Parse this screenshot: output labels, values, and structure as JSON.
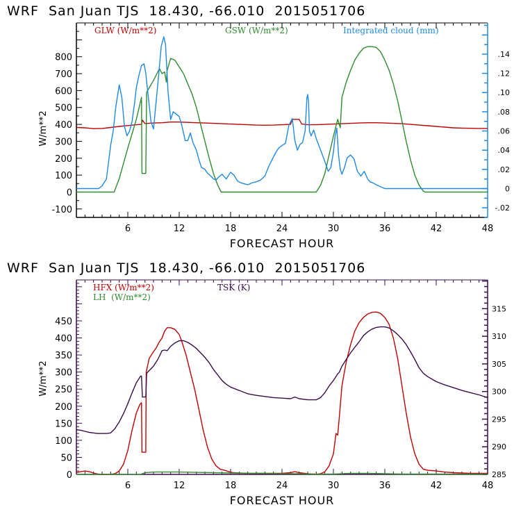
{
  "chart_data": [
    {
      "type": "line",
      "title": "WRF  San Juan TJS  18.430, -66.010  2015051706",
      "xlabel": "FORECAST HOUR",
      "ylabel": "W/m**2",
      "xlim": [
        0,
        48
      ],
      "ylim": [
        -150,
        1000
      ],
      "y2lim": [
        -0.03,
        0.1725
      ],
      "x_ticks": [
        "6",
        "12",
        "18",
        "24",
        "30",
        "36",
        "42",
        "48"
      ],
      "x_tick_values": [
        6,
        12,
        18,
        24,
        30,
        36,
        42,
        48
      ],
      "y_ticks": [
        "-100",
        "0",
        "100",
        "200",
        "300",
        "400",
        "500",
        "600",
        "700",
        "800"
      ],
      "y_tick_values": [
        -100,
        0,
        100,
        200,
        300,
        400,
        500,
        600,
        700,
        800
      ],
      "y2_ticks": [
        "-.02",
        "0",
        ".02",
        ".04",
        ".06",
        ".08",
        ".10",
        ".12",
        ".14"
      ],
      "y2_tick_values": [
        -0.02,
        0,
        0.02,
        0.04,
        0.06,
        0.08,
        0.1,
        0.12,
        0.14
      ],
      "legend_placement": "top",
      "axis_color": "#000000",
      "right_axis_color": "#1e88e5",
      "series": [
        {
          "name": "GLW (W/m**2)",
          "color": "#c00000",
          "axis": "left",
          "x": [
            0,
            1,
            2,
            3,
            4,
            5,
            6,
            7,
            7.6,
            7.7,
            8,
            9,
            10,
            11,
            12,
            13,
            14,
            15,
            16,
            17,
            18,
            19,
            20,
            21,
            22,
            23,
            24,
            25,
            25.2,
            26,
            26.3,
            27,
            28,
            29,
            30,
            31,
            32,
            33,
            34,
            35,
            36,
            37,
            38,
            39,
            40,
            41,
            42,
            43,
            44,
            45,
            46,
            47,
            48
          ],
          "y": [
            382,
            380,
            375,
            376,
            382,
            388,
            393,
            398,
            400,
            425,
            405,
            408,
            410,
            414,
            414,
            412,
            410,
            408,
            406,
            404,
            402,
            400,
            398,
            396,
            395,
            396,
            398,
            400,
            430,
            430,
            402,
            398,
            398,
            400,
            402,
            404,
            406,
            408,
            410,
            410,
            408,
            406,
            404,
            400,
            396,
            392,
            388,
            384,
            380,
            378,
            377,
            376,
            376
          ]
        },
        {
          "name": "GSW (W/m**2)",
          "color": "#2e8b2e",
          "axis": "left",
          "x": [
            0,
            4.4,
            5,
            6,
            7,
            7.6,
            7.65,
            8.1,
            8.2,
            9,
            9.7,
            10,
            10.3,
            10.5,
            10.6,
            11,
            11.5,
            12,
            12.5,
            13,
            13.5,
            14,
            14.5,
            15,
            15.5,
            16,
            16.5,
            16.9,
            28,
            28.5,
            29,
            29.5,
            30,
            30.5,
            30.8,
            31,
            31.5,
            32,
            32.5,
            33,
            33.5,
            34,
            34.5,
            35,
            35.5,
            36,
            36.5,
            37,
            37.5,
            38,
            38.5,
            39,
            39.5,
            40,
            40.5,
            40.7,
            48
          ],
          "y": [
            0,
            0,
            80,
            260,
            430,
            560,
            110,
            110,
            590,
            660,
            730,
            700,
            710,
            650,
            720,
            790,
            780,
            740,
            700,
            640,
            580,
            500,
            400,
            300,
            200,
            110,
            40,
            0,
            0,
            40,
            110,
            220,
            330,
            430,
            380,
            560,
            650,
            720,
            780,
            820,
            850,
            860,
            860,
            855,
            830,
            780,
            720,
            640,
            540,
            420,
            300,
            190,
            100,
            40,
            5,
            0,
            0
          ]
        },
        {
          "name": "Integrated cloud (mm)",
          "color": "#1e88e5",
          "axis": "right",
          "x": [
            0,
            2.6,
            3,
            3.5,
            4,
            4.3,
            4.6,
            5,
            5.3,
            5.6,
            5.9,
            6.2,
            6.5,
            6.8,
            7,
            7.3,
            7.6,
            7.9,
            8.1,
            8.4,
            8.7,
            9,
            9.3,
            9.6,
            9.9,
            10.2,
            10.4,
            10.7,
            11,
            11.3,
            11.6,
            12,
            12.3,
            12.7,
            13,
            13.3,
            13.6,
            14,
            14.3,
            14.6,
            15,
            15.3,
            15.7,
            16,
            16.3,
            16.6,
            17,
            17.5,
            18,
            18.4,
            18.8,
            19.2,
            19.6,
            20,
            20.5,
            21,
            21.5,
            22,
            22.5,
            23,
            23.3,
            23.6,
            24,
            24.4,
            24.8,
            25.2,
            25.5,
            25.8,
            26.1,
            26.4,
            26.7,
            26.9,
            27,
            27.1,
            27.2,
            27.4,
            27.7,
            28,
            28.3,
            28.6,
            29,
            29.4,
            29.7,
            30,
            30.2,
            30.4,
            30.6,
            30.8,
            31,
            31.3,
            31.6,
            32,
            32.4,
            32.8,
            33.2,
            33.6,
            34,
            34.3,
            34.6,
            35,
            35.5,
            36,
            36.5,
            37,
            48
          ],
          "y": [
            0,
            0,
            0.003,
            0.01,
            0.045,
            0.06,
            0.085,
            0.108,
            0.095,
            0.065,
            0.055,
            0.06,
            0.07,
            0.09,
            0.105,
            0.118,
            0.128,
            0.13,
            0.12,
            0.095,
            0.07,
            0.062,
            0.09,
            0.118,
            0.148,
            0.158,
            0.15,
            0.1,
            0.072,
            0.08,
            0.078,
            0.075,
            0.066,
            0.05,
            0.05,
            0.058,
            0.048,
            0.04,
            0.03,
            0.022,
            0.02,
            0.016,
            0.013,
            0.01,
            0.009,
            0.012,
            0.015,
            0.01,
            0.017,
            0.014,
            0.008,
            0.006,
            0.005,
            0.004,
            0.006,
            0.007,
            0.009,
            0.013,
            0.024,
            0.033,
            0.038,
            0.042,
            0.045,
            0.047,
            0.066,
            0.073,
            0.05,
            0.04,
            0.046,
            0.048,
            0.06,
            0.094,
            0.098,
            0.09,
            0.06,
            0.055,
            0.061,
            0.052,
            0.045,
            0.038,
            0.028,
            0.018,
            0.022,
            0.038,
            0.055,
            0.063,
            0.035,
            0.02,
            0.015,
            0.022,
            0.032,
            0.035,
            0.031,
            0.018,
            0.013,
            0.018,
            0.01,
            0.007,
            0.006,
            0.004,
            0.002,
            0,
            0,
            0,
            0
          ]
        }
      ]
    },
    {
      "type": "line",
      "title": "WRF  San Juan TJS  18.430, -66.010  2015051706",
      "xlabel": "FORECAST HOUR",
      "ylabel": "W/m**2",
      "xlim": [
        0,
        48
      ],
      "ylim": [
        0,
        570
      ],
      "y2lim": [
        285,
        320.2
      ],
      "x_ticks": [
        "6",
        "12",
        "18",
        "24",
        "30",
        "36",
        "42",
        "48"
      ],
      "x_tick_values": [
        6,
        12,
        18,
        24,
        30,
        36,
        42,
        48
      ],
      "y_ticks": [
        "0",
        "50",
        "100",
        "150",
        "200",
        "250",
        "300",
        "350",
        "400",
        "450"
      ],
      "y_tick_values": [
        0,
        50,
        100,
        150,
        200,
        250,
        300,
        350,
        400,
        450
      ],
      "y2_ticks": [
        "285",
        "290",
        "295",
        "300",
        "305",
        "310",
        "315"
      ],
      "y2_tick_values": [
        285,
        290,
        295,
        300,
        305,
        310,
        315
      ],
      "legend_placement": "top-left",
      "axis_color": "#3a0a4a",
      "series": [
        {
          "name": "HFX (W/m**2)",
          "color": "#c00000",
          "axis": "left",
          "x": [
            0,
            0.5,
            1,
            1.5,
            2,
            2.5,
            3,
            3.5,
            4,
            4.5,
            5,
            5.5,
            6,
            6.5,
            7,
            7.4,
            7.6,
            7.65,
            8.1,
            8.15,
            8.5,
            9,
            9.3,
            9.6,
            10,
            10.3,
            10.6,
            11,
            11.5,
            12,
            12.3,
            12.8,
            13.3,
            13.8,
            14.3,
            14.8,
            15.3,
            15.8,
            16.3,
            16.8,
            17.3,
            17.8,
            18.3,
            19,
            20,
            21,
            22,
            23,
            24,
            25,
            25.5,
            26,
            27,
            27.5,
            28,
            28.5,
            29,
            29.5,
            30,
            30.3,
            30.5,
            30.7,
            31,
            31.5,
            32,
            32.5,
            33,
            33.5,
            34,
            34.5,
            35,
            35.5,
            36,
            36.5,
            37,
            37.5,
            38,
            38.5,
            39,
            39.5,
            40,
            40.5,
            41,
            42,
            43,
            44,
            45,
            46,
            47,
            48
          ],
          "y": [
            5,
            8,
            10,
            8,
            4,
            1,
            0,
            0,
            0,
            2,
            10,
            30,
            70,
            130,
            180,
            205,
            210,
            65,
            65,
            300,
            340,
            360,
            370,
            385,
            400,
            420,
            430,
            430,
            425,
            410,
            390,
            350,
            300,
            250,
            190,
            130,
            80,
            45,
            25,
            15,
            12,
            8,
            5,
            4,
            3,
            3,
            3,
            3,
            3,
            5,
            8,
            5,
            2,
            1,
            0,
            2,
            8,
            25,
            60,
            120,
            115,
            170,
            260,
            330,
            380,
            420,
            445,
            460,
            470,
            475,
            476,
            472,
            460,
            440,
            400,
            340,
            260,
            180,
            110,
            60,
            30,
            15,
            12,
            10,
            7,
            5,
            4,
            3,
            3,
            3
          ]
        },
        {
          "name": "LH (W/m**2)",
          "color": "#2e8b2e",
          "axis": "left",
          "x": [
            0,
            7.5,
            8,
            8.5,
            9,
            10,
            12,
            14,
            16,
            18,
            20,
            22,
            24,
            26,
            28,
            30,
            32,
            34,
            36,
            38,
            40,
            42,
            44,
            46,
            48
          ],
          "y": [
            0,
            0,
            5,
            6,
            7,
            7,
            7,
            6,
            5,
            4,
            3,
            3,
            2,
            2,
            1,
            1,
            3,
            3,
            2,
            1,
            1,
            1,
            1,
            1,
            1
          ],
          "legend_only_note": ""
        },
        {
          "name": "TSK (K)",
          "color": "#3a0a4a",
          "axis": "right",
          "x": [
            0,
            0.5,
            1,
            1.5,
            2,
            2.5,
            3,
            3.5,
            4,
            4.5,
            5,
            5.5,
            6,
            6.5,
            7,
            7.5,
            7.6,
            7.7,
            8.1,
            8.2,
            8.5,
            9,
            9.5,
            10,
            10.3,
            10.6,
            11,
            11.5,
            12,
            12.5,
            13,
            13.5,
            14,
            14.5,
            15,
            15.5,
            16,
            16.5,
            17,
            17.5,
            18,
            19,
            20,
            21,
            22,
            23,
            24,
            25,
            25.5,
            26,
            27,
            28,
            28.5,
            29,
            29.5,
            30,
            30.5,
            30.7,
            31,
            31.5,
            32,
            32.5,
            33,
            33.5,
            34,
            34.5,
            35,
            35.5,
            36,
            36.5,
            37,
            37.5,
            38,
            38.5,
            39,
            39.5,
            40,
            40.5,
            41,
            42,
            43,
            44,
            45,
            46,
            47,
            48
          ],
          "y": [
            293.1,
            293,
            292.8,
            292.6,
            292.5,
            292.4,
            292.4,
            292.4,
            292.5,
            293.3,
            294.5,
            296,
            297.8,
            299.8,
            301.6,
            302.8,
            302.8,
            299,
            299,
            303.3,
            303.8,
            304.6,
            305.8,
            307.4,
            307.5,
            307.4,
            308.2,
            308.8,
            309.2,
            309.2,
            308.9,
            308.4,
            307.8,
            307,
            306.2,
            305.2,
            304,
            303,
            302,
            301.3,
            300.8,
            300.2,
            299.6,
            299.3,
            299.1,
            298.9,
            298.8,
            298.7,
            299,
            298.7,
            298.5,
            298.5,
            298.9,
            299.8,
            301,
            302,
            303.2,
            303.5,
            304.6,
            305.8,
            307,
            308,
            309,
            310.1,
            310.8,
            311.3,
            311.6,
            311.7,
            311.7,
            311.5,
            311,
            310.3,
            309.5,
            308.5,
            307.2,
            305.8,
            304.3,
            303.3,
            302.7,
            301.8,
            301.2,
            300.7,
            300.2,
            299.8,
            299.4,
            298.9
          ]
        }
      ]
    }
  ],
  "legend_labels": {
    "glw": "GLW (W/m**2)",
    "gsw": "GSW (W/m**2)",
    "cloud": "Integrated cloud (mm)",
    "hfx": "HFX (W/m**2)",
    "lh": "LH  (W/m**2)",
    "tsk": "TSK (K)"
  }
}
